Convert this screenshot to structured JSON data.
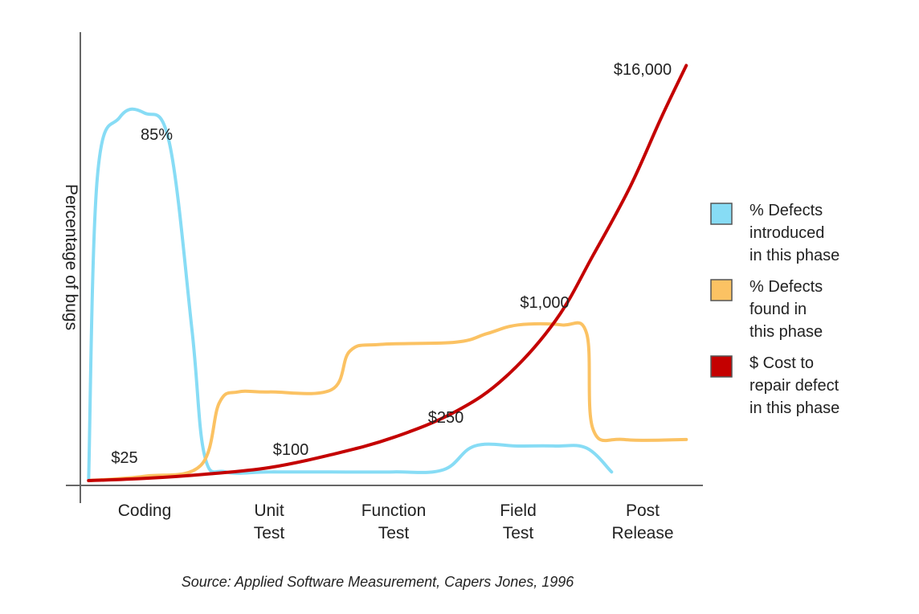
{
  "chart_data": {
    "type": "line",
    "title": "",
    "ylabel": "Percentage of bugs",
    "xlabel": "",
    "categories": [
      [
        "Coding"
      ],
      [
        "Unit",
        "Test"
      ],
      [
        "Function",
        "Test"
      ],
      [
        "Field",
        "Test"
      ],
      [
        "Post",
        "Release"
      ]
    ],
    "series": [
      {
        "name": "% Defects introduced in this phase",
        "legend_lines": [
          "% Defects",
          "introduced",
          "in this phase"
        ],
        "color": "#87dcf5",
        "annotation": "85%",
        "points": [
          [
            -0.45,
            0
          ],
          [
            -0.38,
            70
          ],
          [
            -0.2,
            84
          ],
          [
            0.0,
            85
          ],
          [
            0.2,
            78
          ],
          [
            0.38,
            35
          ],
          [
            0.48,
            6
          ],
          [
            0.65,
            2
          ],
          [
            1.0,
            2
          ],
          [
            1.5,
            2
          ],
          [
            2.0,
            2
          ],
          [
            2.4,
            2.5
          ],
          [
            2.65,
            8
          ],
          [
            3.0,
            8
          ],
          [
            3.3,
            8
          ],
          [
            3.55,
            7.5
          ],
          [
            3.75,
            2
          ]
        ]
      },
      {
        "name": "% Defects found in this phase",
        "legend_lines": [
          "% Defects",
          "found in",
          "this phase"
        ],
        "color": "#fbc263",
        "annotation": "$1,000",
        "points": [
          [
            -0.45,
            0
          ],
          [
            0.0,
            1
          ],
          [
            0.45,
            3.5
          ],
          [
            0.6,
            18
          ],
          [
            0.75,
            20.5
          ],
          [
            1.0,
            20.5
          ],
          [
            1.5,
            21
          ],
          [
            1.65,
            30
          ],
          [
            1.9,
            31.5
          ],
          [
            2.5,
            32
          ],
          [
            2.75,
            34
          ],
          [
            3.0,
            36
          ],
          [
            3.35,
            36
          ],
          [
            3.55,
            34
          ],
          [
            3.6,
            12
          ],
          [
            3.85,
            9.5
          ],
          [
            4.35,
            9.5
          ]
        ]
      },
      {
        "name": "$ Cost to repair defect in this phase",
        "legend_lines": [
          "$ Cost to",
          "repair defect",
          "in this phase"
        ],
        "color": "#c40000",
        "annotation": "$16,000",
        "points": [
          [
            -0.45,
            0
          ],
          [
            0.0,
            0.5
          ],
          [
            0.5,
            1.5
          ],
          [
            1.0,
            3
          ],
          [
            1.5,
            6
          ],
          [
            2.0,
            10
          ],
          [
            2.5,
            16
          ],
          [
            2.9,
            24
          ],
          [
            3.3,
            37
          ],
          [
            3.6,
            52
          ],
          [
            3.9,
            68
          ],
          [
            4.15,
            84
          ],
          [
            4.35,
            96
          ]
        ]
      }
    ],
    "annotations": [
      "$25",
      "$100",
      "$250"
    ],
    "ylim": [
      0,
      100
    ],
    "xlim": [
      -0.5,
      4.45
    ],
    "legend_position": "right",
    "grid": false
  },
  "source_text": "Source: Applied Software Measurement, Capers Jones, 1996"
}
